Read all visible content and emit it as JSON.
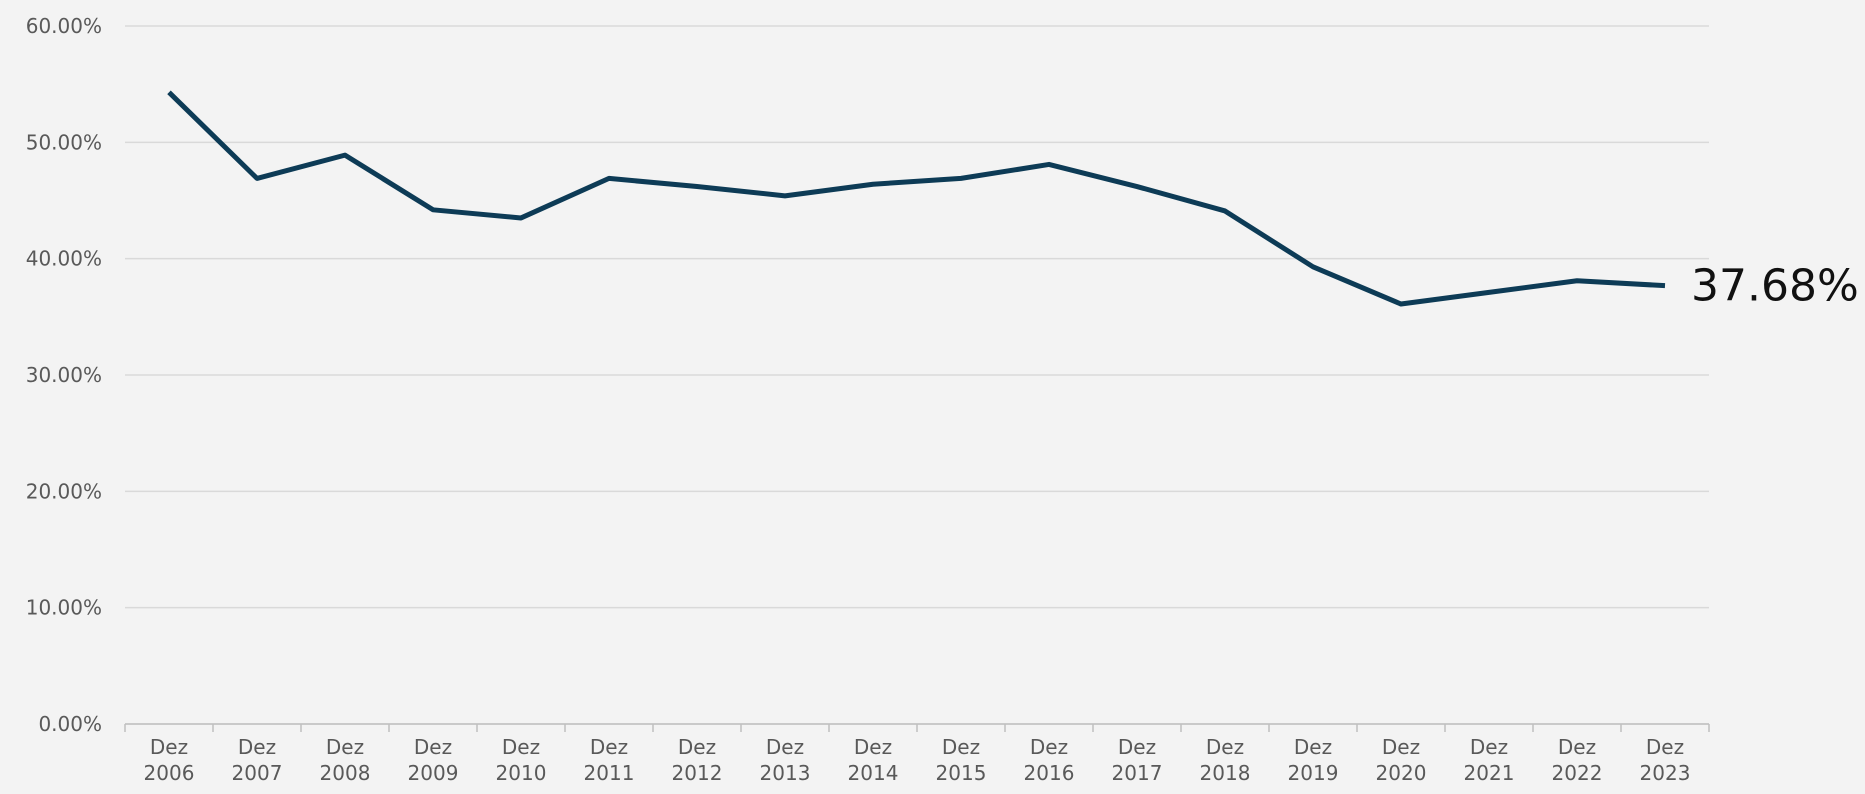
{
  "chart_data": {
    "type": "line",
    "categories": [
      "Dez 2006",
      "Dez 2007",
      "Dez 2008",
      "Dez 2009",
      "Dez 2010",
      "Dez 2011",
      "Dez 2012",
      "Dez 2013",
      "Dez 2014",
      "Dez 2015",
      "Dez 2016",
      "Dez 2017",
      "Dez 2018",
      "Dez 2019",
      "Dez 2020",
      "Dez 2021",
      "Dez 2022",
      "Dez 2023"
    ],
    "series": [
      {
        "color": "#0d3b56",
        "values": [
          54.3,
          46.9,
          48.9,
          44.2,
          43.5,
          46.9,
          46.2,
          45.4,
          46.4,
          46.9,
          48.1,
          46.2,
          44.1,
          39.3,
          36.1,
          37.1,
          38.1,
          37.68
        ],
        "value_labels": [
          null,
          null,
          null,
          null,
          null,
          null,
          null,
          null,
          null,
          null,
          null,
          null,
          null,
          null,
          null,
          null,
          null,
          "37.68%"
        ]
      }
    ],
    "ylim": [
      0,
      60
    ],
    "yticks": [
      {
        "value": 0,
        "label": "0.00%"
      },
      {
        "value": 10,
        "label": "10.00%"
      },
      {
        "value": 20,
        "label": "20.00%"
      },
      {
        "value": 30,
        "label": "30.00%"
      },
      {
        "value": 40,
        "label": "40.00%"
      },
      {
        "value": 50,
        "label": "50.00%"
      },
      {
        "value": 60,
        "label": "60.00%"
      }
    ],
    "grid": true
  }
}
